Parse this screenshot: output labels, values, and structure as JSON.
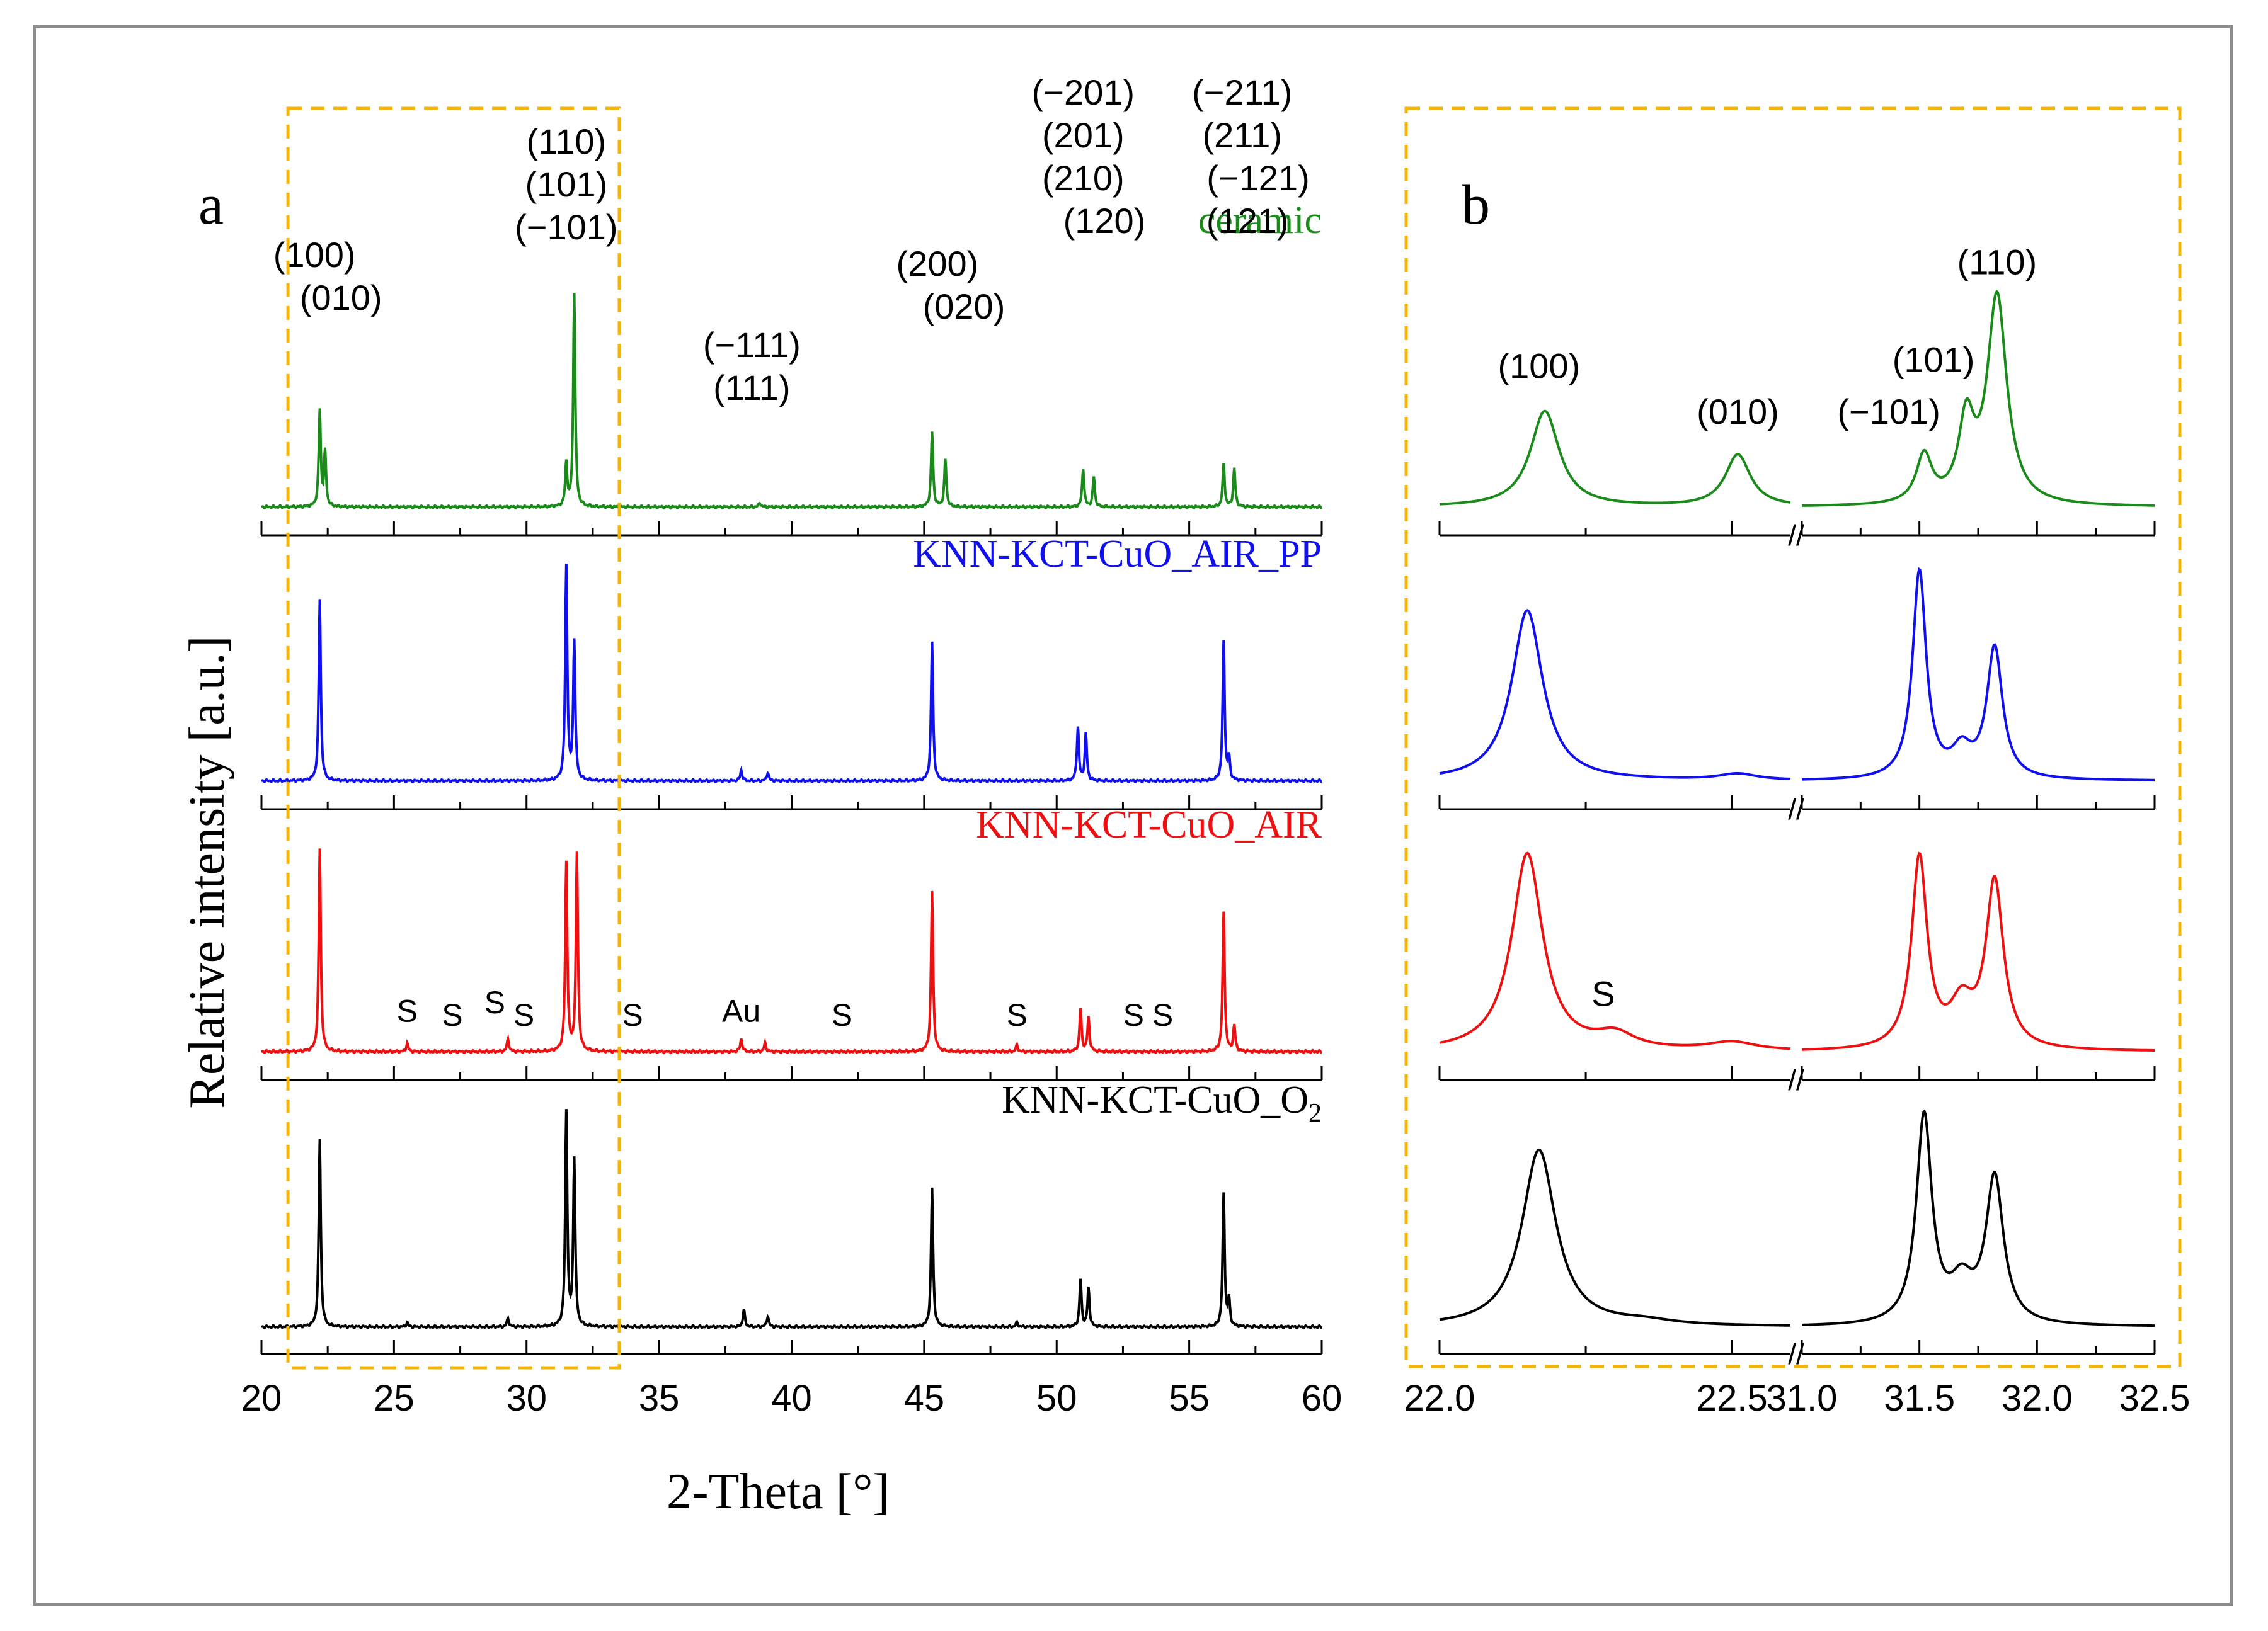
{
  "chart_data": [
    {
      "panel": "a",
      "type": "line",
      "xlabel": "2-Theta [°]",
      "ylabel": "Relative intensity [a.u.]",
      "xlim": [
        20,
        60
      ],
      "xticks": [
        20,
        25,
        30,
        35,
        40,
        45,
        50,
        55,
        60
      ],
      "highlight_range": [
        21,
        33.5
      ],
      "series": [
        {
          "name": "ceramic",
          "label": "ceramic",
          "color": "#1a8a1a",
          "peaks": [
            [
              22.2,
              0.45
            ],
            [
              22.4,
              0.25
            ],
            [
              31.5,
              0.2
            ],
            [
              31.8,
              1.0
            ],
            [
              38.8,
              0.02
            ],
            [
              45.3,
              0.35
            ],
            [
              45.8,
              0.22
            ],
            [
              51.0,
              0.18
            ],
            [
              51.4,
              0.14
            ],
            [
              56.3,
              0.2
            ],
            [
              56.7,
              0.18
            ]
          ],
          "annotations": [
            {
              "text": "(100)",
              "x": 22.0,
              "y": 1.12
            },
            {
              "text": "(010)",
              "x": 23.0,
              "y": 0.92
            },
            {
              "text": "(110)",
              "x": 31.5,
              "y": 1.65
            },
            {
              "text": "(101)",
              "x": 31.5,
              "y": 1.45
            },
            {
              "text": "(−101)",
              "x": 31.5,
              "y": 1.25
            },
            {
              "text": "(−111)",
              "x": 38.5,
              "y": 0.7
            },
            {
              "text": "(111)",
              "x": 38.5,
              "y": 0.5
            },
            {
              "text": "(200)",
              "x": 45.5,
              "y": 1.08
            },
            {
              "text": "(020)",
              "x": 46.5,
              "y": 0.88
            },
            {
              "text": "(−201)",
              "x": 51.0,
              "y": 1.88
            },
            {
              "text": "(201)",
              "x": 51.0,
              "y": 1.68
            },
            {
              "text": "(210)",
              "x": 51.0,
              "y": 1.48
            },
            {
              "text": "(120)",
              "x": 51.8,
              "y": 1.28
            },
            {
              "text": "(−211)",
              "x": 57.0,
              "y": 1.88
            },
            {
              "text": "(211)",
              "x": 57.0,
              "y": 1.68
            },
            {
              "text": "(−121)",
              "x": 57.6,
              "y": 1.48
            },
            {
              "text": "(121)",
              "x": 57.2,
              "y": 1.28
            }
          ]
        },
        {
          "name": "KNN-KCT-CuO_AIR_PP",
          "label": "KNN-KCT-CuO_AIR_PP",
          "color": "#1010ee",
          "peaks": [
            [
              22.2,
              0.85
            ],
            [
              31.5,
              1.0
            ],
            [
              31.8,
              0.65
            ],
            [
              38.1,
              0.05
            ],
            [
              39.1,
              0.04
            ],
            [
              45.3,
              0.65
            ],
            [
              50.8,
              0.25
            ],
            [
              51.1,
              0.22
            ],
            [
              56.3,
              0.65
            ],
            [
              56.5,
              0.1
            ]
          ]
        },
        {
          "name": "KNN-KCT-CuO_AIR",
          "label": "KNN-KCT-CuO_AIR",
          "color": "#ee1010",
          "peaks": [
            [
              22.2,
              0.95
            ],
            [
              25.5,
              0.04
            ],
            [
              29.3,
              0.06
            ],
            [
              31.5,
              0.88
            ],
            [
              31.9,
              0.92
            ],
            [
              38.1,
              0.06
            ],
            [
              39.0,
              0.04
            ],
            [
              45.3,
              0.75
            ],
            [
              48.5,
              0.03
            ],
            [
              50.9,
              0.2
            ],
            [
              51.2,
              0.16
            ],
            [
              56.3,
              0.65
            ],
            [
              56.7,
              0.12
            ]
          ],
          "annotations": [
            {
              "text": "S",
              "x": 25.5,
              "y": 0.14
            },
            {
              "text": "S",
              "x": 27.2,
              "y": 0.12
            },
            {
              "text": "S",
              "x": 28.8,
              "y": 0.18
            },
            {
              "text": "S",
              "x": 29.9,
              "y": 0.12
            },
            {
              "text": "S",
              "x": 34.0,
              "y": 0.12
            },
            {
              "text": "Au",
              "x": 38.1,
              "y": 0.14
            },
            {
              "text": "S",
              "x": 41.9,
              "y": 0.12
            },
            {
              "text": "S",
              "x": 48.5,
              "y": 0.12
            },
            {
              "text": "S",
              "x": 52.9,
              "y": 0.12
            },
            {
              "text": "S",
              "x": 54.0,
              "y": 0.12
            }
          ]
        },
        {
          "name": "KNN-KCT-CuO_O2",
          "label": "KNN-KCT-CuO_O",
          "label_subscript": "2",
          "color": "#000000",
          "peaks": [
            [
              22.2,
              0.88
            ],
            [
              25.5,
              0.02
            ],
            [
              29.3,
              0.04
            ],
            [
              31.5,
              1.0
            ],
            [
              31.8,
              0.78
            ],
            [
              38.2,
              0.08
            ],
            [
              39.1,
              0.05
            ],
            [
              45.3,
              0.65
            ],
            [
              48.5,
              0.02
            ],
            [
              50.9,
              0.22
            ],
            [
              51.2,
              0.18
            ],
            [
              56.3,
              0.62
            ],
            [
              56.5,
              0.12
            ]
          ]
        }
      ]
    },
    {
      "panel": "b",
      "type": "line",
      "x_segments": [
        [
          22.0,
          22.6
        ],
        [
          31.0,
          32.5
        ]
      ],
      "xticks": [
        "22.0",
        "22.5",
        "31.0",
        "31.5",
        "32.0",
        "32.5"
      ],
      "series": [
        {
          "name": "ceramic",
          "color": "#1a8a1a",
          "peaks": [
            [
              22.18,
              0.46,
              0.03
            ],
            [
              22.51,
              0.25,
              0.026
            ],
            [
              31.52,
              0.23,
              0.04
            ],
            [
              31.7,
              0.38,
              0.04
            ],
            [
              31.83,
              1.0,
              0.05
            ]
          ],
          "annotations": [
            {
              "text": "(100)",
              "x": 22.17,
              "y": 0.62
            },
            {
              "text": "(010)",
              "x": 22.51,
              "y": 0.4
            },
            {
              "text": "(110)",
              "x": 31.83,
              "y": 1.12
            },
            {
              "text": "(101)",
              "x": 31.56,
              "y": 0.65
            },
            {
              "text": "(−101)",
              "x": 31.37,
              "y": 0.4
            }
          ]
        },
        {
          "name": "KNN-KCT-CuO_AIR_PP",
          "color": "#1010ee",
          "peaks": [
            [
              22.15,
              0.82,
              0.032
            ],
            [
              22.51,
              0.03,
              0.04
            ],
            [
              31.5,
              1.0,
              0.035
            ],
            [
              31.68,
              0.13,
              0.05
            ],
            [
              31.82,
              0.63,
              0.04
            ]
          ]
        },
        {
          "name": "KNN-KCT-CuO_AIR",
          "color": "#ee1010",
          "peaks": [
            [
              22.15,
              0.95,
              0.032
            ],
            [
              22.3,
              0.07,
              0.04
            ],
            [
              22.5,
              0.04,
              0.05
            ],
            [
              31.5,
              0.92,
              0.04
            ],
            [
              31.68,
              0.2,
              0.06
            ],
            [
              31.82,
              0.8,
              0.045
            ]
          ],
          "annotations": [
            {
              "text": "S",
              "x": 22.28,
              "y": 0.22
            }
          ]
        },
        {
          "name": "KNN-KCT-CuO_O2",
          "color": "#000000",
          "peaks": [
            [
              22.17,
              0.85,
              0.035
            ],
            [
              22.35,
              0.02,
              0.06
            ],
            [
              31.52,
              1.0,
              0.04
            ],
            [
              31.68,
              0.18,
              0.06
            ],
            [
              31.82,
              0.7,
              0.045
            ]
          ]
        }
      ]
    }
  ],
  "panel_labels": {
    "a": "a",
    "b": "b"
  },
  "axis_break_symbol": "//",
  "highlight_color": "#f5b400"
}
